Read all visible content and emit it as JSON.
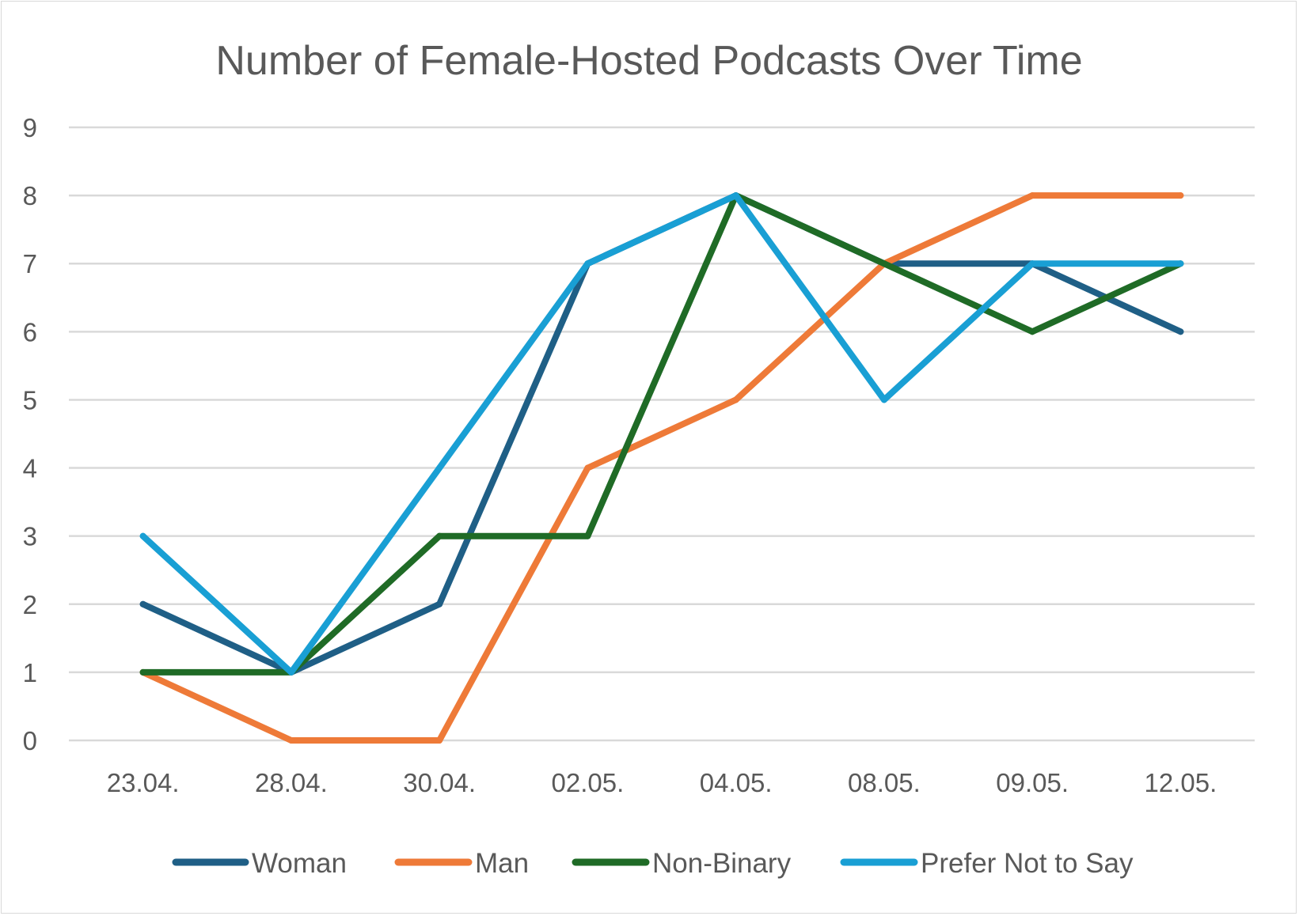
{
  "chart_data": {
    "type": "line",
    "title": "Number of Female-Hosted Podcasts Over Time",
    "xlabel": "",
    "ylabel": "",
    "categories": [
      "23.04.",
      "28.04.",
      "30.04.",
      "02.05.",
      "04.05.",
      "08.05.",
      "09.05.",
      "12.05."
    ],
    "ylim": [
      0,
      9
    ],
    "yticks": [
      0,
      1,
      2,
      3,
      4,
      5,
      6,
      7,
      8,
      9
    ],
    "grid": true,
    "legend_position": "bottom",
    "series": [
      {
        "name": "Woman",
        "color": "#1f5f86",
        "values": [
          2,
          1,
          2,
          7,
          8,
          7,
          7,
          6
        ]
      },
      {
        "name": "Man",
        "color": "#ee7a38",
        "values": [
          1,
          0,
          0,
          4,
          5,
          7,
          8,
          8
        ]
      },
      {
        "name": "Non-Binary",
        "color": "#1f6b26",
        "values": [
          1,
          1,
          3,
          3,
          8,
          7,
          6,
          7
        ]
      },
      {
        "name": "Prefer Not to Say",
        "color": "#199fd4",
        "values": [
          3,
          1,
          4,
          7,
          8,
          5,
          7,
          7
        ]
      }
    ]
  }
}
